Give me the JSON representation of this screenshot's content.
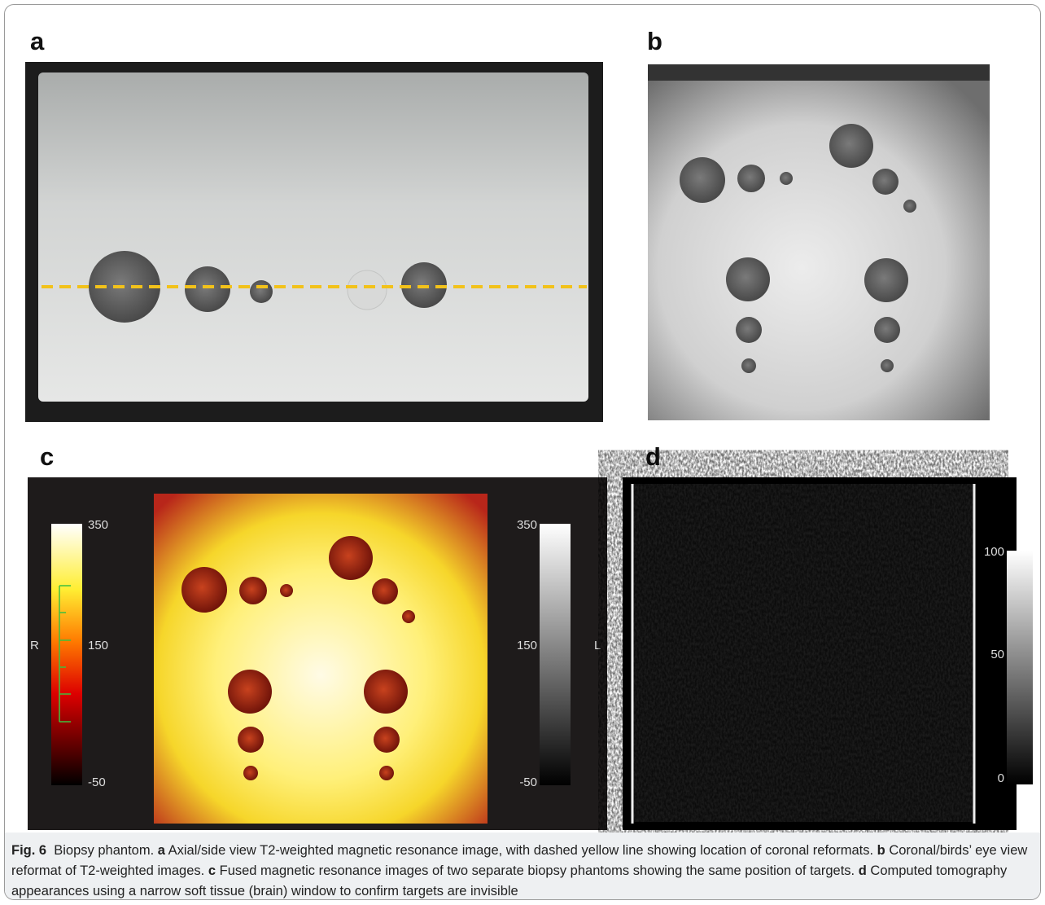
{
  "panels": [
    {
      "label": "a"
    },
    {
      "label": "b"
    },
    {
      "label": "c",
      "left_bar": {
        "side": "R",
        "ticks": [
          "350",
          "150",
          "-50"
        ]
      },
      "right_bar": {
        "side": "L",
        "ticks": [
          "350",
          "150",
          "-50"
        ]
      }
    },
    {
      "label": "d",
      "bar": {
        "ticks": [
          "100",
          "50",
          "0"
        ]
      }
    }
  ],
  "caption": {
    "label": "Fig. 6",
    "title": "Biopsy phantom.",
    "parts": [
      {
        "letter": "a",
        "text": "Axial/side view T2-weighted magnetic resonance image, with dashed yellow line showing location of coronal reformats."
      },
      {
        "letter": "b",
        "text": "Coronal/birds’ eye view reformat of T2-weighted images."
      },
      {
        "letter": "c",
        "text": "Fused magnetic resonance images of two separate biopsy phantoms showing the same position of targets."
      },
      {
        "letter": "d",
        "text": "Computed tomography appearances using a narrow soft tissue (brain) window to confirm targets are invisible"
      }
    ]
  }
}
